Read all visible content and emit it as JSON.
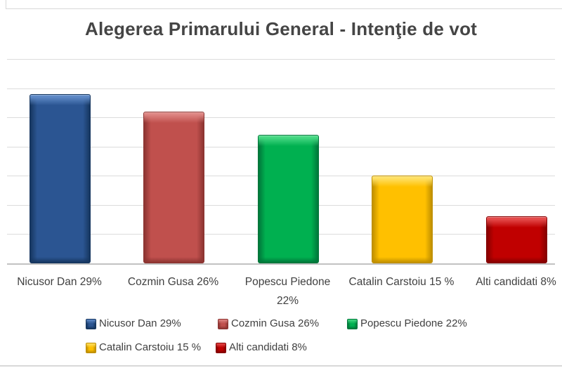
{
  "title": "Alegerea Primarului General - Intenţie de vot",
  "frame": {
    "line_color": "#d8d8d8"
  },
  "chart_data": {
    "type": "bar",
    "title": "Alegerea Primarului General - Intenţie de vot",
    "categories": [
      "Nicusor Dan 29%",
      "Cozmin Gusa 26%",
      "Popescu Piedone 22%",
      "Catalin Carstoiu 15 %",
      "Alti candidati 8%"
    ],
    "values": [
      29,
      26,
      22,
      15,
      8
    ],
    "unit": "%",
    "xlabel": "",
    "ylabel": "",
    "ylim": [
      0,
      35
    ],
    "gridline_step": 5,
    "grid": true,
    "y_tick_labels_visible": false,
    "legend_position": "bottom",
    "x_tick_label_lines": [
      [
        "Nicusor Dan 29%"
      ],
      [
        "Cozmin Gusa 26%"
      ],
      [
        "Popescu Piedone",
        "22%"
      ],
      [
        "Catalin Carstoiu 15 %"
      ],
      [
        "Alti candidati 8%"
      ]
    ],
    "series_colors": [
      {
        "name": "Nicusor Dan 29%",
        "base": "#2B5592",
        "light": "#5F8AC7",
        "dark": "#16365F"
      },
      {
        "name": "Cozmin Gusa 26%",
        "base": "#C0504D",
        "light": "#DE8683",
        "dark": "#8C3431"
      },
      {
        "name": "Popescu Piedone 22%",
        "base": "#00B050",
        "light": "#47D883",
        "dark": "#00763A"
      },
      {
        "name": "Catalin Carstoiu 15 %",
        "base": "#FFC000",
        "light": "#FFE066",
        "dark": "#BF8F00"
      },
      {
        "name": "Alti candidati 8%",
        "base": "#C00000",
        "light": "#E54B4B",
        "dark": "#850000"
      }
    ],
    "legend": [
      "Nicusor Dan 29%",
      "Cozmin Gusa 26%",
      "Popescu Piedone 22%",
      "Catalin Carstoiu 15 %",
      "Alti candidati 8%"
    ]
  }
}
